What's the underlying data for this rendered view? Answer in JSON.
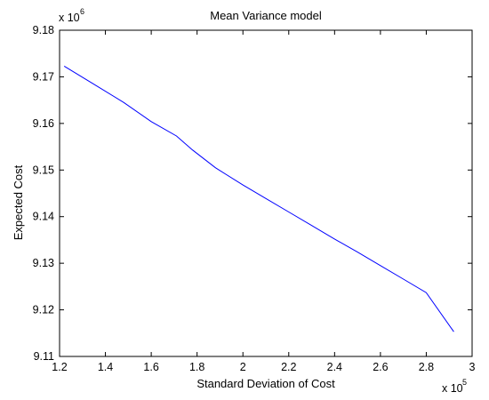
{
  "chart_data": {
    "type": "line",
    "title": "Mean Variance model",
    "xlabel": "Standard Deviation of Cost",
    "ylabel": "Expected Cost",
    "x_multiplier_label": "x 10",
    "x_multiplier_exp": "5",
    "y_multiplier_label": "x 10",
    "y_multiplier_exp": "6",
    "xlim": [
      1.2,
      3.0
    ],
    "ylim": [
      9.11,
      9.18
    ],
    "x_ticks": [
      "1.2",
      "1.4",
      "1.6",
      "1.8",
      "2",
      "2.2",
      "2.4",
      "2.6",
      "2.8",
      "3"
    ],
    "y_ticks": [
      "9.11",
      "9.12",
      "9.13",
      "9.14",
      "9.15",
      "9.16",
      "9.17",
      "9.18"
    ],
    "grid": false,
    "line_color": "#0000ff",
    "series": [
      {
        "x": [
          1.22,
          1.35,
          1.48,
          1.6,
          1.71,
          1.78,
          1.88,
          2.0,
          2.1,
          2.2,
          2.3,
          2.4,
          2.5,
          2.6,
          2.7,
          2.8,
          2.92
        ],
        "values": [
          9.1723,
          9.1684,
          9.1645,
          9.1604,
          9.1573,
          9.1543,
          9.1505,
          9.1468,
          9.1439,
          9.141,
          9.1381,
          9.1352,
          9.1324,
          9.1295,
          9.1266,
          9.1237,
          9.1153
        ]
      }
    ]
  }
}
